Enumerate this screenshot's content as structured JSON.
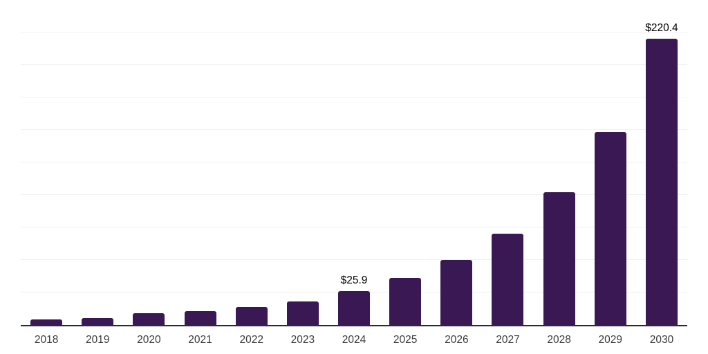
{
  "page": {
    "background_color": "#ffffff"
  },
  "chart_data": {
    "type": "bar",
    "categories": [
      "2018",
      "2019",
      "2020",
      "2021",
      "2022",
      "2023",
      "2024",
      "2025",
      "2026",
      "2027",
      "2028",
      "2029",
      "2030"
    ],
    "values": [
      4.5,
      5.3,
      9.0,
      10.7,
      13.8,
      18.2,
      25.9,
      36.3,
      50.2,
      70.3,
      102.4,
      148.6,
      220.4
    ],
    "bar_labels": [
      "",
      "",
      "",
      "",
      "",
      "",
      "$25.9",
      "",
      "",
      "",
      "",
      "",
      "$220.4"
    ],
    "labeled_points": [
      {
        "category": "2024",
        "label": "$25.9",
        "value": 25.9
      },
      {
        "category": "2030",
        "label": "$220.4",
        "value": 220.4
      }
    ],
    "xlabel": "",
    "ylabel": "",
    "ylim": [
      0,
      250
    ],
    "grid_interval": 25,
    "grid": "horizontal-only",
    "y_tick_labels_shown": false,
    "legend": "none",
    "bar_color": "#3a1854",
    "grid_color": "#f0f0f1",
    "axis_color": "#2b2b2b",
    "value_label_color": "#000000",
    "tick_label_color": "#3a3a3a"
  }
}
